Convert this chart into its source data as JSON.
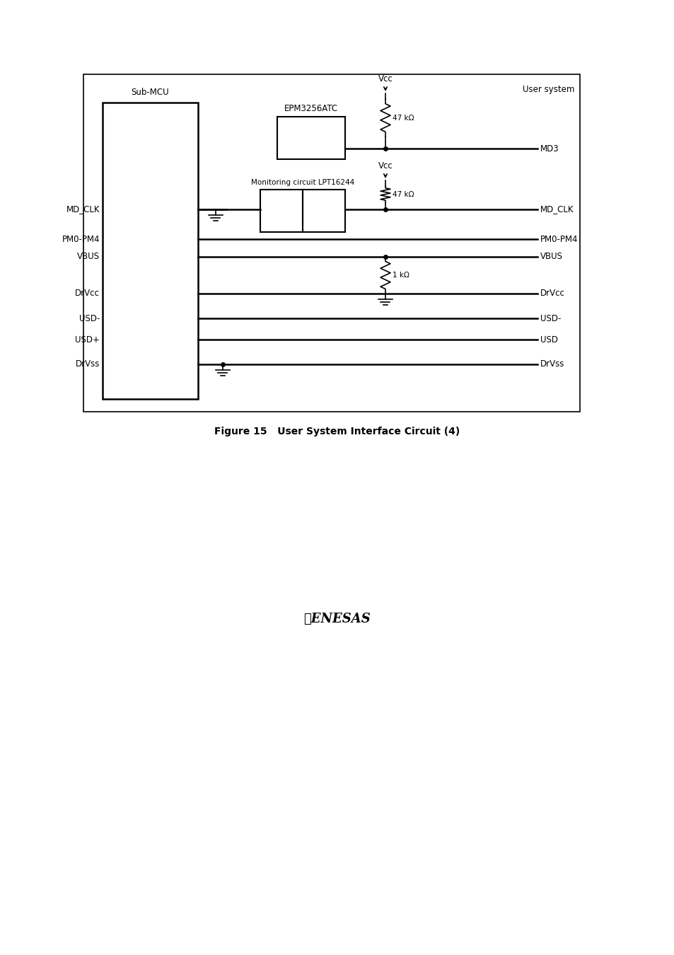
{
  "fig_width": 9.54,
  "fig_height": 13.5,
  "dpi": 100,
  "bg_color": "#ffffff",
  "title": "Figure 15   User System Interface Circuit (4)",
  "title_fontsize": 10,
  "font_size": 8.5,
  "font_size_sm": 7.5,
  "diagram": {
    "sub_mcu_label": "Sub-MCU",
    "epm_label": "EPM3256ATC",
    "monitoring_label": "Monitoring circuit LPT16244",
    "user_system_label": "User system",
    "signals_left": [
      "MD_CLK",
      "PM0-PM4",
      "VBUS",
      "DrVcc",
      "USD-",
      "USD+",
      "DrVss"
    ],
    "signals_right": [
      "MD_CLK",
      "PM0-PM4",
      "VBUS",
      "DrVcc",
      "USD-",
      "USD",
      "DrVss"
    ],
    "resistors_47k_labels": [
      "47 kΩ",
      "47 kΩ"
    ],
    "resistor_1k_label": "1 kΩ",
    "vcc_label": "Vcc",
    "md3_label": "MD3"
  }
}
